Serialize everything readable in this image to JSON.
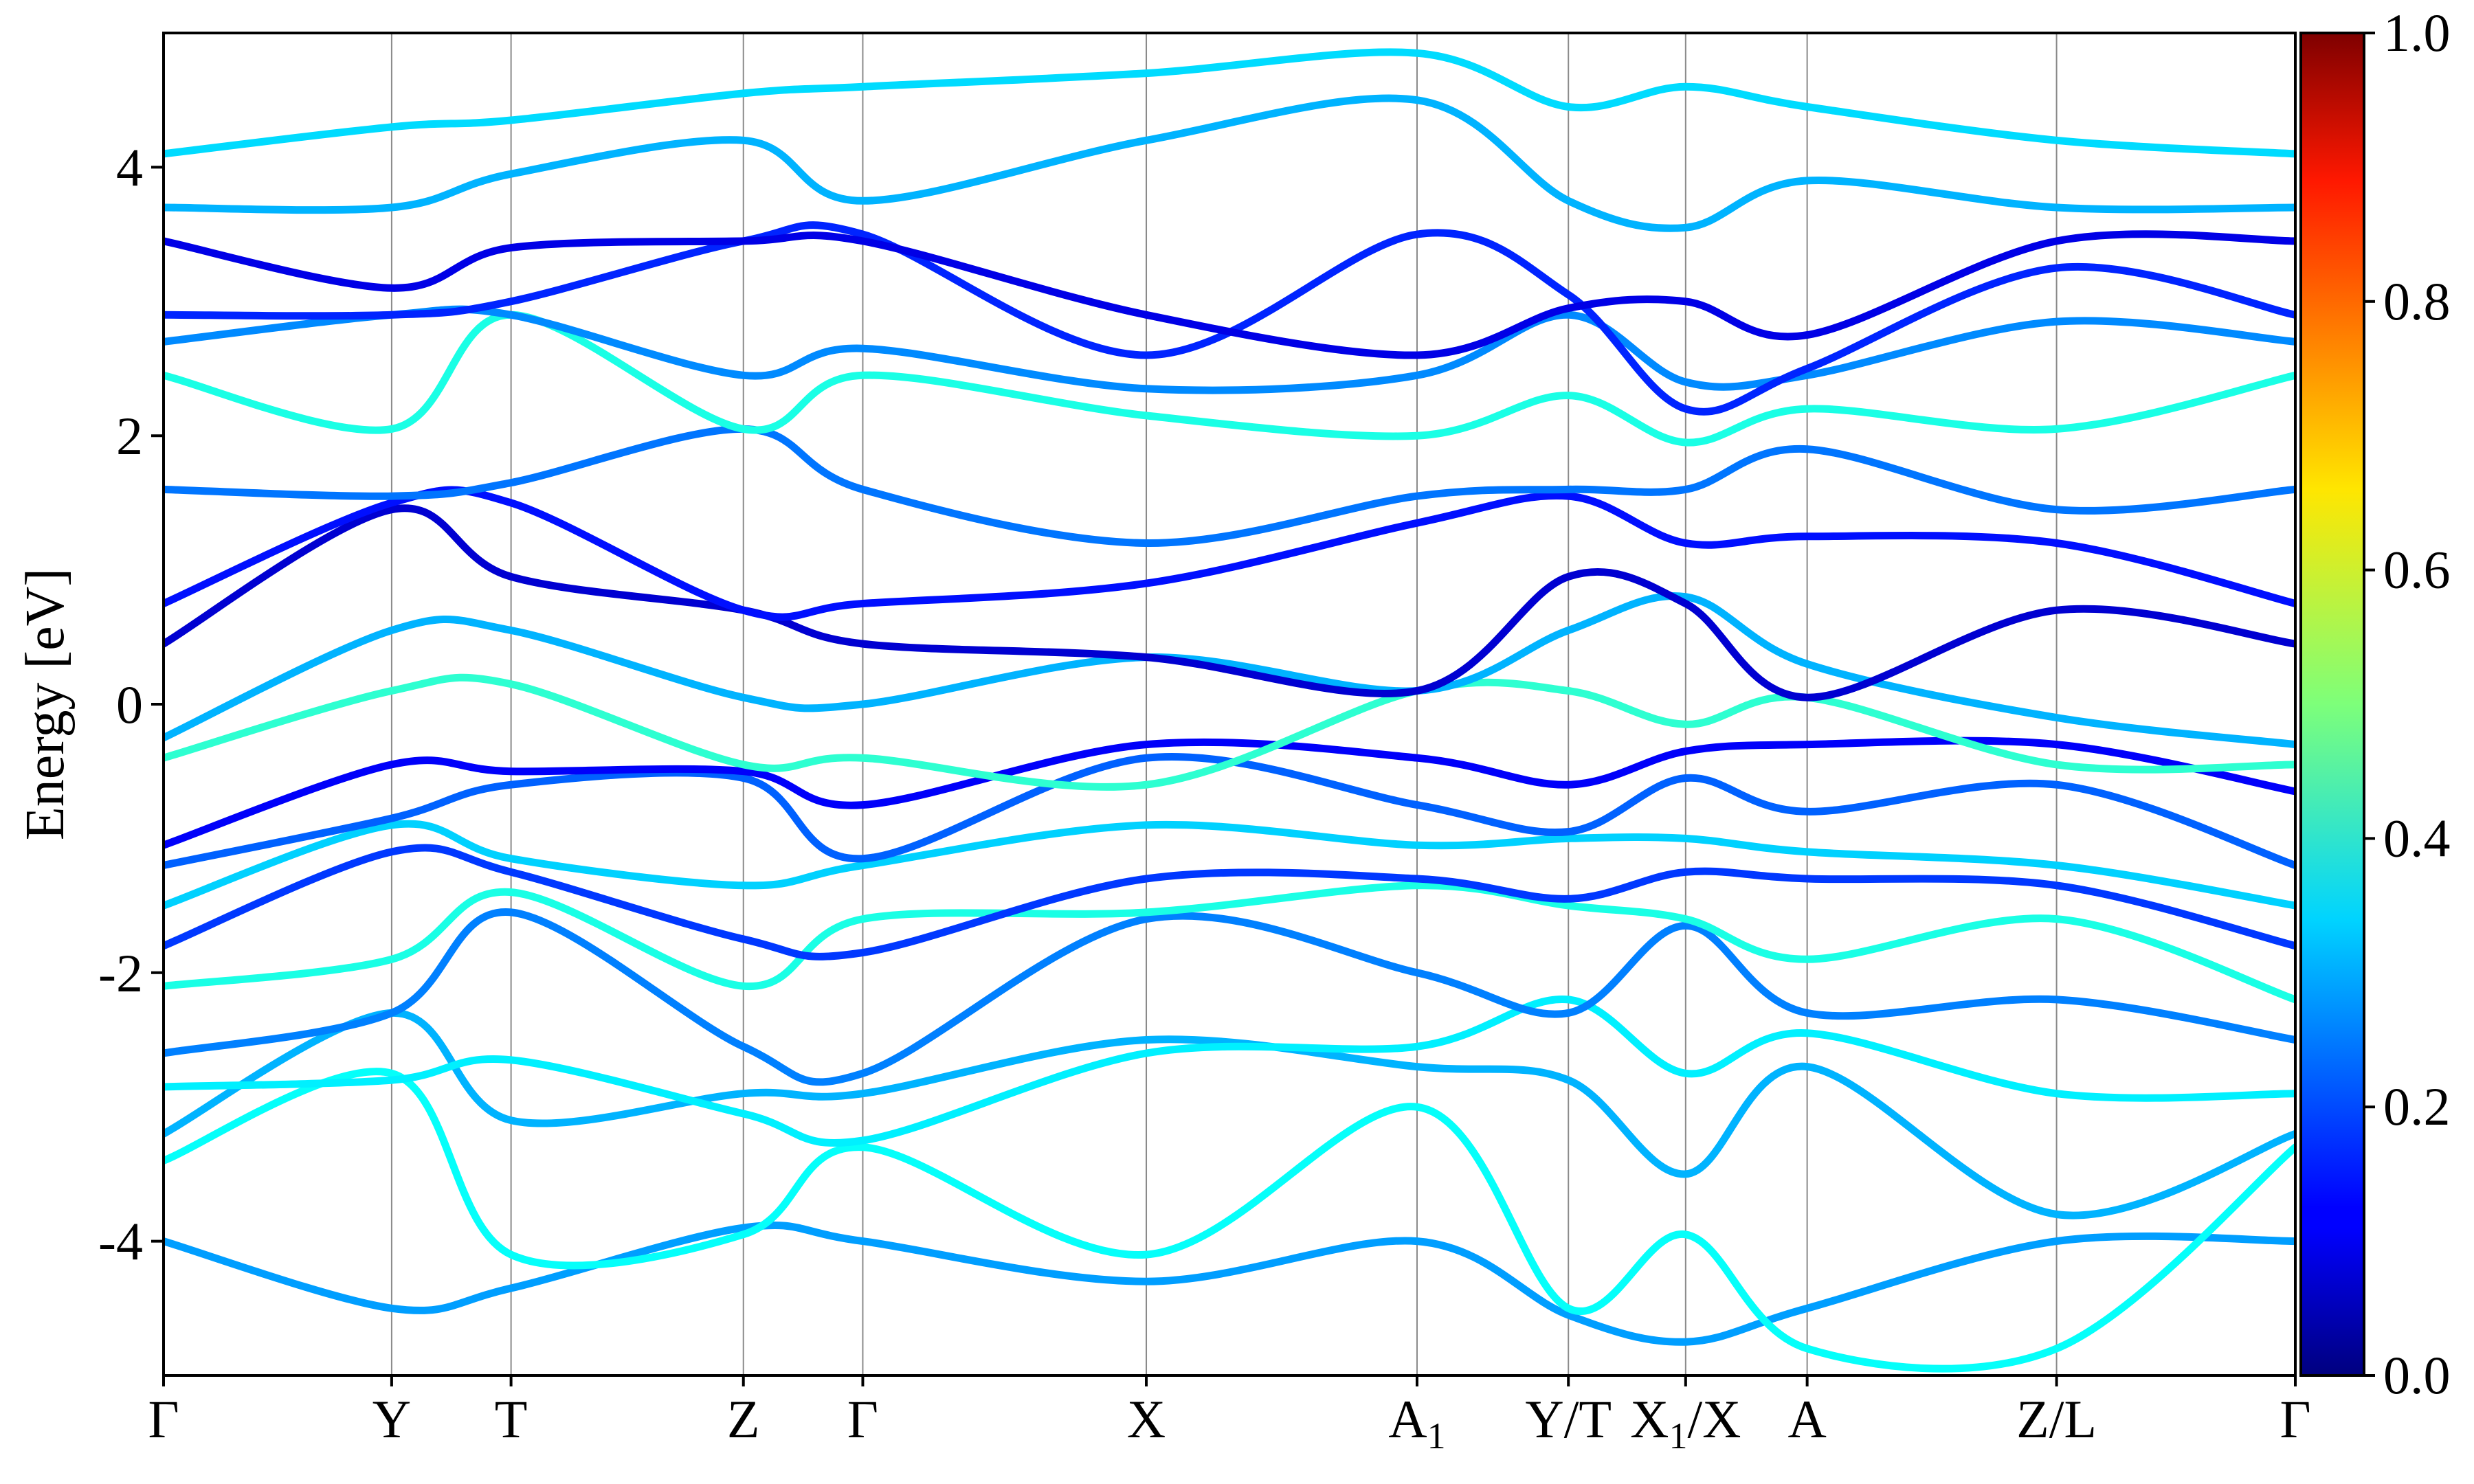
{
  "chart_data": {
    "type": "line",
    "title": "",
    "xlabel": "",
    "ylabel": "Energy [eV]",
    "ylim": [
      -5,
      5
    ],
    "y_ticks": [
      -4,
      -2,
      0,
      2,
      4
    ],
    "k_path": [
      {
        "label": "Γ",
        "pos": 0.0
      },
      {
        "label": "Y",
        "pos": 0.107
      },
      {
        "label": "T",
        "pos": 0.163
      },
      {
        "label": "Z",
        "pos": 0.272
      },
      {
        "label": "Γ",
        "pos": 0.328
      },
      {
        "label": "X",
        "pos": 0.461
      },
      {
        "label": "A",
        "sub": "1",
        "pos": 0.588
      },
      {
        "label": "Y/T",
        "pos": 0.659
      },
      {
        "label": "X",
        "sub": "1",
        "suffix": "/X",
        "pos": 0.714
      },
      {
        "label": "A",
        "pos": 0.771
      },
      {
        "label": "Z/L",
        "pos": 0.888
      },
      {
        "label": "Γ",
        "pos": 1.0
      }
    ],
    "colorbar": {
      "range": [
        0.0,
        1.0
      ],
      "ticks": [
        "0.0",
        "0.2",
        "0.4",
        "0.6",
        "0.8",
        "1.0"
      ],
      "colormap": "jet"
    },
    "bands": [
      {
        "name": "",
        "weight": 0.28,
        "energies": [
          -4.0,
          -4.5,
          -4.35,
          -3.9,
          -4.0,
          -4.3,
          -4.0,
          -4.55,
          -4.75,
          -4.5,
          -4.0,
          -4.0
        ]
      },
      {
        "name": "",
        "weight": 0.38,
        "energies": [
          -3.4,
          -2.75,
          -4.1,
          -3.95,
          -3.3,
          -4.1,
          -3.0,
          -4.5,
          -3.95,
          -4.8,
          -4.8,
          -3.3
        ]
      },
      {
        "name": "",
        "weight": 0.3,
        "energies": [
          -3.2,
          -2.3,
          -3.1,
          -2.9,
          -2.9,
          -2.5,
          -2.7,
          -2.8,
          -3.5,
          -2.7,
          -3.8,
          -3.2
        ]
      },
      {
        "name": "",
        "weight": 0.36,
        "energies": [
          -2.85,
          -2.8,
          -2.65,
          -3.05,
          -3.25,
          -2.6,
          -2.55,
          -2.2,
          -2.75,
          -2.45,
          -2.9,
          -2.9
        ]
      },
      {
        "name": "",
        "weight": 0.25,
        "energies": [
          -2.6,
          -2.3,
          -1.55,
          -2.55,
          -2.75,
          -1.6,
          -2.0,
          -2.3,
          -1.65,
          -2.3,
          -2.2,
          -2.5
        ]
      },
      {
        "name": "",
        "weight": 0.4,
        "energies": [
          -2.1,
          -1.9,
          -1.4,
          -2.1,
          -1.6,
          -1.55,
          -1.35,
          -1.5,
          -1.6,
          -1.9,
          -1.6,
          -2.2
        ]
      },
      {
        "name": "",
        "weight": 0.18,
        "energies": [
          -1.8,
          -1.1,
          -1.25,
          -1.75,
          -1.85,
          -1.3,
          -1.3,
          -1.45,
          -1.25,
          -1.3,
          -1.35,
          -1.8
        ]
      },
      {
        "name": "",
        "weight": 0.33,
        "energies": [
          -1.5,
          -0.9,
          -1.15,
          -1.35,
          -1.2,
          -0.9,
          -1.05,
          -1.0,
          -1.0,
          -1.1,
          -1.2,
          -1.5
        ]
      },
      {
        "name": "",
        "weight": 0.22,
        "energies": [
          -1.2,
          -0.85,
          -0.6,
          -0.55,
          -1.15,
          -0.4,
          -0.75,
          -0.95,
          -0.55,
          -0.8,
          -0.6,
          -1.2
        ]
      },
      {
        "name": "",
        "weight": 0.12,
        "energies": [
          -1.05,
          -0.45,
          -0.5,
          -0.5,
          -0.75,
          -0.3,
          -0.4,
          -0.6,
          -0.35,
          -0.3,
          -0.3,
          -0.65
        ]
      },
      {
        "name": "",
        "weight": 0.42,
        "energies": [
          -0.4,
          0.1,
          0.15,
          -0.45,
          -0.4,
          -0.6,
          0.1,
          0.1,
          -0.15,
          0.05,
          -0.45,
          -0.45
        ]
      },
      {
        "name": "",
        "weight": 0.3,
        "energies": [
          -0.25,
          0.55,
          0.55,
          0.05,
          0.0,
          0.35,
          0.1,
          0.55,
          0.8,
          0.3,
          -0.1,
          -0.3
        ]
      },
      {
        "name": "",
        "weight": 0.08,
        "energies": [
          0.45,
          1.45,
          0.95,
          0.7,
          0.45,
          0.35,
          0.1,
          0.95,
          0.75,
          0.05,
          0.7,
          0.45
        ]
      },
      {
        "name": "",
        "weight": 0.14,
        "energies": [
          0.75,
          1.5,
          1.5,
          0.7,
          0.75,
          0.9,
          1.35,
          1.55,
          1.2,
          1.25,
          1.2,
          0.75
        ]
      },
      {
        "name": "",
        "weight": 0.24,
        "energies": [
          1.6,
          1.55,
          1.65,
          2.05,
          1.6,
          1.2,
          1.55,
          1.6,
          1.6,
          1.9,
          1.45,
          1.6
        ]
      },
      {
        "name": "",
        "weight": 0.4,
        "energies": [
          2.45,
          2.05,
          2.9,
          2.05,
          2.45,
          2.15,
          2.0,
          2.3,
          1.95,
          2.2,
          2.05,
          2.45
        ]
      },
      {
        "name": "",
        "weight": 0.26,
        "energies": [
          2.7,
          2.9,
          2.9,
          2.45,
          2.65,
          2.35,
          2.45,
          2.9,
          2.4,
          2.45,
          2.85,
          2.7
        ]
      },
      {
        "name": "",
        "weight": 0.16,
        "energies": [
          2.9,
          2.9,
          3.0,
          3.45,
          3.5,
          2.6,
          3.5,
          3.05,
          2.2,
          2.5,
          3.25,
          2.9
        ]
      },
      {
        "name": "",
        "weight": 0.1,
        "energies": [
          3.45,
          3.1,
          3.4,
          3.45,
          3.45,
          2.9,
          2.6,
          2.95,
          3.0,
          2.75,
          3.45,
          3.45
        ]
      },
      {
        "name": "",
        "weight": 0.3,
        "energies": [
          3.7,
          3.7,
          3.95,
          4.2,
          3.75,
          4.2,
          4.5,
          3.75,
          3.55,
          3.9,
          3.7,
          3.7
        ]
      },
      {
        "name": "",
        "weight": 0.34,
        "energies": [
          4.1,
          4.3,
          4.35,
          4.55,
          4.6,
          4.7,
          4.85,
          4.45,
          4.6,
          4.45,
          4.2,
          4.1
        ]
      }
    ]
  }
}
